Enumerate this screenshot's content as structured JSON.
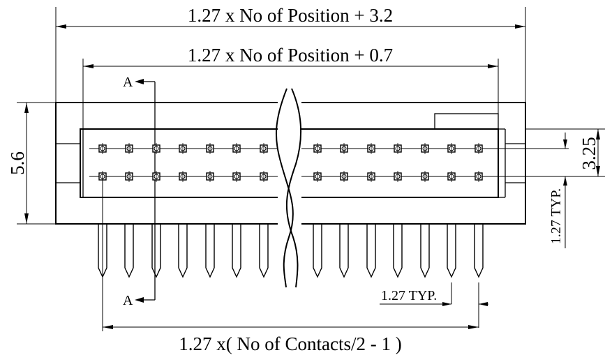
{
  "dimensions": {
    "overall_length": "1.27  x  No of Position  + 3.2",
    "inner_length": "1.27  x No of Position  + 0.7",
    "contact_span": "1.27  x(  No of Contacts/2 - 1 )",
    "height": "5.6",
    "row_offset": "3.25",
    "row_pitch": "1.27 TYP.",
    "pin_pitch": "1.27 TYP."
  },
  "section_marks": {
    "top": "A",
    "bottom": "A"
  },
  "colors": {
    "line": "#000000",
    "background": "#ffffff"
  }
}
